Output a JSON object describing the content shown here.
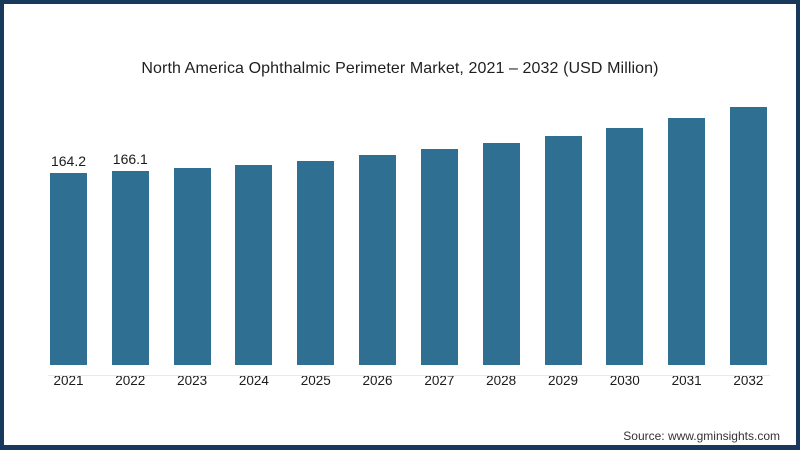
{
  "panel": {
    "background": "#ffffff",
    "border_color": "#16395c"
  },
  "chart": {
    "bar_color": "#2e6f92",
    "source": "Source: www.gminsights.com"
  },
  "chart_data": {
    "type": "bar",
    "title": "North America Ophthalmic Perimeter Market, 2021 – 2032 (USD Million)",
    "categories": [
      "2021",
      "2022",
      "2023",
      "2024",
      "2025",
      "2026",
      "2027",
      "2028",
      "2029",
      "2030",
      "2031",
      "2032"
    ],
    "values": [
      164.2,
      166.1,
      168.5,
      171.5,
      174.9,
      180.0,
      185.2,
      190.0,
      196.3,
      203.2,
      211.8,
      220.8
    ],
    "data_labels": [
      "164.2",
      "166.1",
      "",
      "",
      "",
      "",
      "",
      "",
      "",
      "",
      "",
      ""
    ],
    "xlabel": "",
    "ylabel": "USD Million",
    "ylim": [
      0,
      225
    ],
    "grid": false,
    "legend": false
  }
}
